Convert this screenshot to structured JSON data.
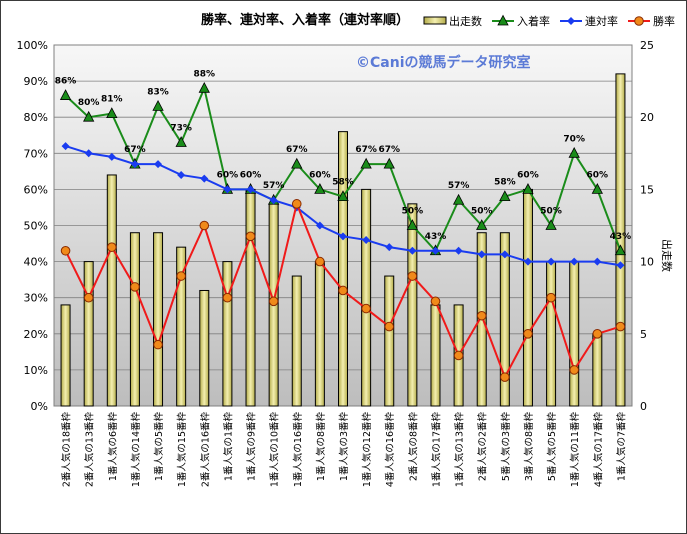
{
  "chart_data": {
    "type": "bar+line",
    "title": "勝率、連対率、入着率（連対率順）",
    "watermark": "©Caniの競馬データ研究室",
    "ylabel_right": "出走数",
    "left_axis": {
      "min": 0,
      "max": 1.0,
      "ticks": [
        "0%",
        "10%",
        "20%",
        "30%",
        "40%",
        "50%",
        "60%",
        "70%",
        "80%",
        "90%",
        "100%"
      ]
    },
    "right_axis": {
      "min": 0,
      "max": 25,
      "ticks": [
        "0",
        "5",
        "10",
        "15",
        "20",
        "25"
      ]
    },
    "categories": [
      "2番人気の18番枠",
      "2番人気の13番枠",
      "1番人気の6番枠",
      "1番人気の14番枠",
      "1番人気の5番枠",
      "1番人気の15番枠",
      "2番人気の16番枠",
      "1番人気の1番枠",
      "1番人気の9番枠",
      "1番人気の10番枠",
      "1番人気の16番枠",
      "1番人気の8番枠",
      "1番人気の3番枠",
      "1番人気の12番枠",
      "4番人気の16番枠",
      "2番人気の8番枠",
      "1番人気の17番枠",
      "1番人気の13番枠",
      "2番人気の2番枠",
      "5番人気の3番枠",
      "3番人気の8番枠",
      "5番人気の5番枠",
      "1番人気の11番枠",
      "4番人気の17番枠",
      "1番人気の7番枠"
    ],
    "series": [
      {
        "name": "出走数",
        "kind": "bar",
        "axis": "right",
        "color": "#e6e08e",
        "values": [
          7,
          10,
          16,
          12,
          12,
          11,
          8,
          10,
          15,
          14,
          9,
          10,
          19,
          15,
          9,
          14,
          7,
          7,
          12,
          12,
          15,
          10,
          10,
          5,
          23
        ]
      },
      {
        "name": "入着率",
        "kind": "line",
        "axis": "left",
        "color": "#1a8c1a",
        "marker": "triangle",
        "values": [
          0.86,
          0.8,
          0.81,
          0.67,
          0.83,
          0.73,
          0.88,
          0.6,
          0.6,
          0.57,
          0.67,
          0.6,
          0.58,
          0.67,
          0.67,
          0.5,
          0.43,
          0.57,
          0.5,
          0.58,
          0.6,
          0.5,
          0.7,
          0.6,
          0.43
        ]
      },
      {
        "name": "連対率",
        "kind": "line",
        "axis": "left",
        "color": "#1a3cf0",
        "marker": "diamond",
        "values": [
          0.72,
          0.7,
          0.69,
          0.67,
          0.67,
          0.64,
          0.63,
          0.6,
          0.6,
          0.57,
          0.55,
          0.5,
          0.47,
          0.46,
          0.44,
          0.43,
          0.43,
          0.43,
          0.42,
          0.42,
          0.4,
          0.4,
          0.4,
          0.4,
          0.39
        ]
      },
      {
        "name": "勝率",
        "kind": "line",
        "axis": "left",
        "color": "#f01a1a",
        "marker": "circle",
        "values": [
          0.43,
          0.3,
          0.44,
          0.33,
          0.17,
          0.36,
          0.5,
          0.3,
          0.47,
          0.29,
          0.56,
          0.4,
          0.32,
          0.27,
          0.22,
          0.36,
          0.29,
          0.14,
          0.25,
          0.08,
          0.2,
          0.3,
          0.1,
          0.2,
          0.22
        ]
      }
    ],
    "data_labels": {
      "series": "入着率",
      "texts": [
        "86%",
        "80%",
        "81%",
        "67%",
        "83%",
        "73%",
        "88%",
        "60%",
        "60%",
        "57%",
        "67%",
        "60%",
        "58%",
        "67%",
        "67%",
        "50%",
        "43%",
        "57%",
        "50%",
        "58%",
        "60%",
        "50%",
        "70%",
        "60%",
        "43%"
      ]
    },
    "legend_position": "top-right",
    "grid": true
  }
}
